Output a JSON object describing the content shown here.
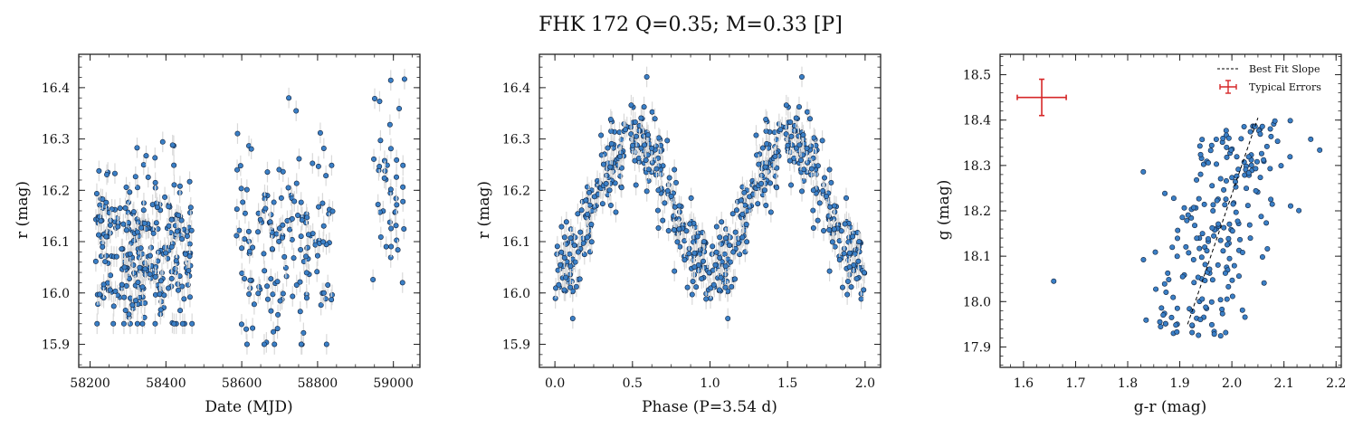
{
  "title": "FHK 172  Q=0.35; M=0.33 [P]",
  "chart_data": [
    {
      "type": "scatter",
      "xlabel": "Date (MJD)",
      "ylabel": "r (mag)",
      "xlim": [
        58170,
        59070
      ],
      "ylim": [
        16.465,
        15.855
      ],
      "y_inverted": true,
      "xticks": [
        58200,
        58400,
        58600,
        58800,
        59000
      ],
      "yticks": [
        15.9,
        16.0,
        16.1,
        16.2,
        16.3,
        16.4
      ],
      "xtick_labels": [
        "58200",
        "58400",
        "58600",
        "58800",
        "59000"
      ],
      "ytick_labels": [
        "15.9",
        "16.0",
        "16.1",
        "16.2",
        "16.3",
        "16.4"
      ],
      "marker_color": "#3a7fc6",
      "errorbar_color": "#d9d9d9",
      "clusters": [
        {
          "x_range": [
            58215,
            58470
          ],
          "n": 300,
          "y_min": 15.94,
          "y_max": 16.31
        },
        {
          "x_range": [
            58585,
            58840
          ],
          "n": 155,
          "y_min": 15.9,
          "y_max": 16.38
        },
        {
          "x_range": [
            58945,
            59030
          ],
          "n": 42,
          "y_min": 16.02,
          "y_max": 16.42
        }
      ]
    },
    {
      "type": "scatter",
      "xlabel": "Phase (P=3.54 d)",
      "ylabel": "r (mag)",
      "xlim": [
        -0.1,
        2.1
      ],
      "ylim": [
        16.465,
        15.855
      ],
      "y_inverted": true,
      "period_days": 3.54,
      "xticks": [
        0.0,
        0.5,
        1.0,
        1.5,
        2.0
      ],
      "yticks": [
        15.9,
        16.0,
        16.1,
        16.2,
        16.3,
        16.4
      ],
      "xtick_labels": [
        "0.0",
        "0.5",
        "1.0",
        "1.5",
        "2.0"
      ],
      "ytick_labels": [
        "15.9",
        "16.0",
        "16.1",
        "16.2",
        "16.3",
        "16.4"
      ],
      "marker_color": "#3a7fc6",
      "errorbar_color": "#d9d9d9",
      "folded_curve": {
        "brightest_phase": 0.0,
        "faintest_phase": 0.5,
        "max_mag": 16.05,
        "min_mag": 16.3,
        "n_points_per_cycle": 330
      }
    },
    {
      "type": "scatter",
      "xlabel": "g-r (mag)",
      "ylabel": "g (mag)",
      "xlim": [
        1.555,
        2.21
      ],
      "ylim": [
        18.545,
        17.855
      ],
      "y_inverted": true,
      "xticks": [
        1.6,
        1.7,
        1.8,
        1.9,
        2.0,
        2.1,
        2.2
      ],
      "yticks": [
        17.9,
        18.0,
        18.1,
        18.2,
        18.3,
        18.4,
        18.5
      ],
      "xtick_labels": [
        "1.6",
        "1.7",
        "1.8",
        "1.9",
        "2.0",
        "2.1",
        "2.2"
      ],
      "ytick_labels": [
        "17.9",
        "18.0",
        "18.1",
        "18.2",
        "18.3",
        "18.4",
        "18.5"
      ],
      "marker_color": "#3a7fc6",
      "best_fit_line": {
        "x": [
          1.915,
          2.05
        ],
        "y": [
          17.95,
          18.405
        ],
        "color": "#000000",
        "style": "dashed"
      },
      "typical_errors": {
        "x": 1.635,
        "y": 18.45,
        "xerr": 0.047,
        "yerr": 0.04,
        "color": "#d62728"
      },
      "legend": {
        "placement": "top-right",
        "entries": [
          "Best Fit Slope",
          "Typical Errors"
        ]
      },
      "cloud": {
        "n": 215,
        "x_range": [
          1.83,
          2.18
        ],
        "y_range": [
          17.92,
          18.4
        ]
      },
      "outliers": [
        {
          "x": 1.658,
          "y": 18.045
        }
      ]
    }
  ]
}
